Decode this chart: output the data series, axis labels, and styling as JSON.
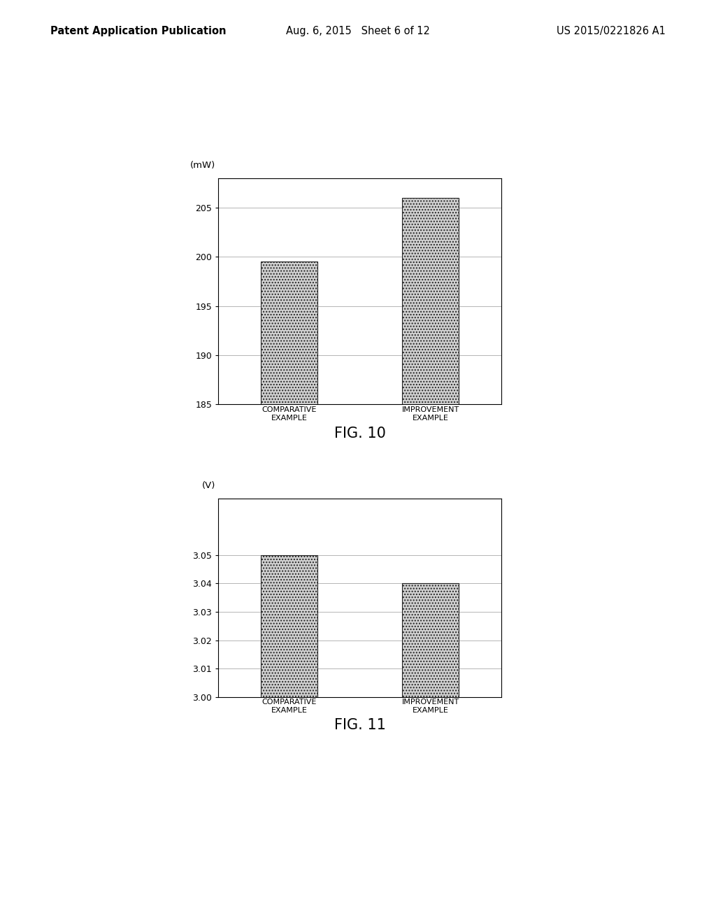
{
  "header_left": "Patent Application Publication",
  "header_mid": "Aug. 6, 2015   Sheet 6 of 12",
  "header_right": "US 2015/0221826 A1",
  "fig10": {
    "title": "FIG. 10",
    "ylabel": "(mW)",
    "categories": [
      "COMPARATIVE\nEXAMPLE",
      "IMPROVEMENT\nEXAMPLE"
    ],
    "values": [
      199.5,
      206.0
    ],
    "ylim": [
      185,
      208
    ],
    "yticks": [
      185,
      190,
      195,
      200,
      205
    ],
    "bar_color": "#d0d0d0",
    "bar_edge_color": "#222222",
    "bar_width": 0.4,
    "grid_color": "#aaaaaa"
  },
  "fig11": {
    "title": "FIG. 11",
    "ylabel": "(V)",
    "categories": [
      "COMPARATIVE\nEXAMPLE",
      "IMPROVEMENT\nEXAMPLE"
    ],
    "values": [
      3.05,
      3.04
    ],
    "ylim": [
      3.0,
      3.07
    ],
    "yticks": [
      3.0,
      3.01,
      3.02,
      3.03,
      3.04,
      3.05
    ],
    "bar_color": "#d0d0d0",
    "bar_edge_color": "#222222",
    "bar_width": 0.4,
    "grid_color": "#aaaaaa"
  },
  "background_color": "#ffffff",
  "header_fontsize": 10.5,
  "fig_label_fontsize": 15,
  "tick_fontsize": 9,
  "cat_fontsize": 8
}
